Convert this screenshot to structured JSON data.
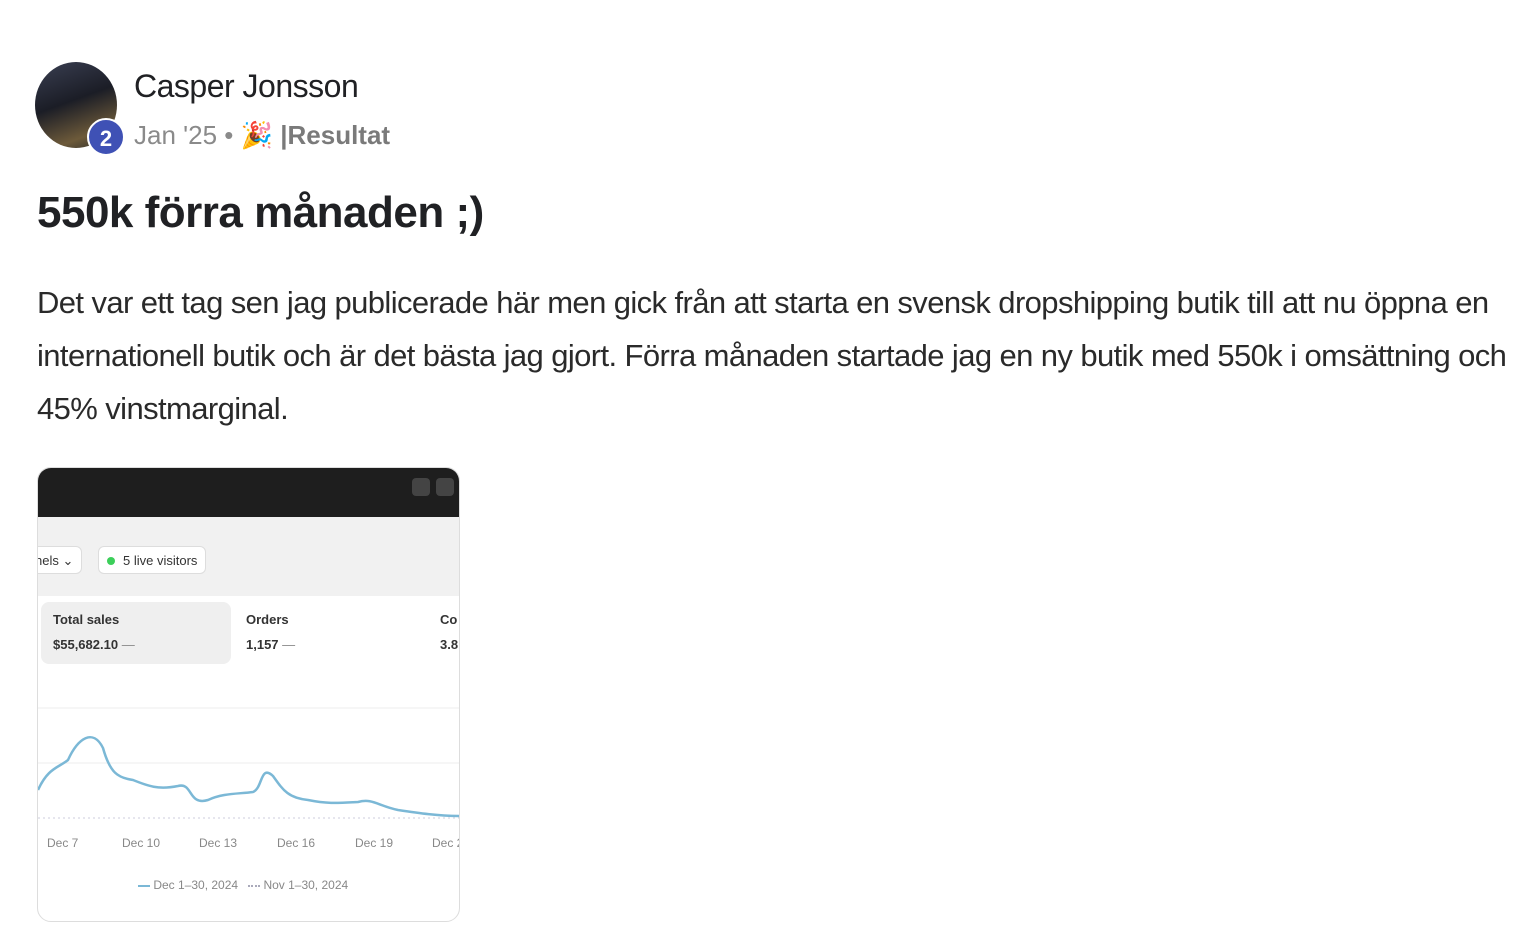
{
  "post": {
    "author": "Casper Jonsson",
    "level": "2",
    "date": "Jan '25",
    "separator": "•",
    "emoji": "🎉",
    "category": "|Resultat",
    "title": "550k förra månaden ;)",
    "body": "Det var ett tag sen jag publicerade här men gick från att starta en svensk dropshipping butik till att nu öppna en internationell butik och är det bästa jag gjort. Förra månaden startade jag en ny butik med 550k i omsättning och 45% vinstmarginal.",
    "image": {
      "channels": "nels",
      "live_visitors": "5 live visitors",
      "cards": [
        {
          "label": "Total sales",
          "value": "$55,682.10",
          "trend": "—"
        },
        {
          "label": "Orders",
          "value": "1,157",
          "trend": "—"
        },
        {
          "label": "Co",
          "value": "3.8"
        }
      ],
      "x_labels": [
        "Dec 7",
        "Dec 10",
        "Dec 13",
        "Dec 16",
        "Dec 19",
        "Dec 2"
      ],
      "legend": [
        "Dec 1–30, 2024",
        "Nov 1–30, 2024"
      ]
    }
  }
}
